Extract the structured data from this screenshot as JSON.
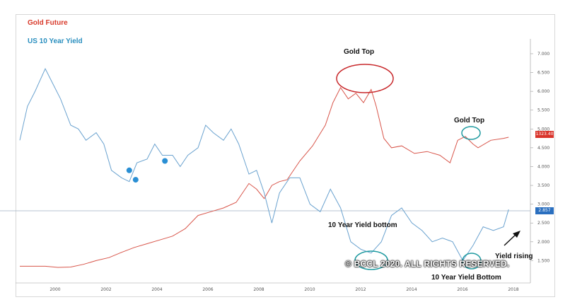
{
  "chart_data": {
    "type": "line",
    "legend": [
      "Gold Future",
      "US 10 Year Yield"
    ],
    "y_ticks": [
      "7.000",
      "6.500",
      "6.000",
      "5.500",
      "5.000",
      "4.500",
      "4.000",
      "3.500",
      "3.000",
      "2.500",
      "2.000",
      "1.500"
    ],
    "y_tick_values": [
      7.0,
      6.5,
      6.0,
      5.5,
      5.0,
      4.5,
      4.0,
      3.5,
      3.0,
      2.5,
      2.0,
      1.5
    ],
    "x_ticks": [
      "2000",
      "2002",
      "2004",
      "2006",
      "2008",
      "2010",
      "2012",
      "2014",
      "2016",
      "2018"
    ],
    "x_tick_values": [
      2000,
      2002,
      2004,
      2006,
      2008,
      2010,
      2012,
      2014,
      2016,
      2018
    ],
    "xlim": [
      1999.0,
      2019.0
    ],
    "ylim": [
      1.0,
      7.3
    ],
    "colors": {
      "gold": "#d8554a",
      "yield": "#6aa2cf",
      "gold_tag": "#d9342b",
      "yield_tag": "#2a6fbf",
      "ellipse_red": "#c8282b",
      "ellipse_teal": "#1f9aa0"
    },
    "series": [
      {
        "name": "Gold Future",
        "x": [
          1999.0,
          1999.5,
          2000.0,
          2000.5,
          2001.0,
          2001.5,
          2002.0,
          2002.5,
          2003.0,
          2003.5,
          2004.0,
          2004.5,
          2005.0,
          2005.5,
          2006.0,
          2006.5,
          2007.0,
          2007.5,
          2008.0,
          2008.3,
          2008.6,
          2008.9,
          2009.2,
          2009.5,
          2010.0,
          2010.5,
          2011.0,
          2011.3,
          2011.6,
          2011.9,
          2012.2,
          2012.5,
          2012.8,
          2013.0,
          2013.3,
          2013.6,
          2014.0,
          2014.5,
          2015.0,
          2015.5,
          2015.9,
          2016.2,
          2016.5,
          2016.8,
          2017.0,
          2017.5,
          2018.0,
          2018.2
        ],
        "values": [
          1.35,
          1.35,
          1.35,
          1.32,
          1.33,
          1.4,
          1.5,
          1.58,
          1.72,
          1.85,
          1.95,
          2.05,
          2.15,
          2.35,
          2.7,
          2.8,
          2.9,
          3.05,
          3.55,
          3.4,
          3.15,
          3.5,
          3.6,
          3.65,
          4.15,
          4.55,
          5.1,
          5.7,
          6.1,
          5.8,
          5.95,
          5.7,
          6.05,
          5.6,
          4.75,
          4.5,
          4.55,
          4.35,
          4.4,
          4.3,
          4.1,
          4.7,
          4.8,
          4.6,
          4.5,
          4.7,
          4.75,
          4.78
        ]
      },
      {
        "name": "US 10 Year Yield",
        "x": [
          1999.0,
          1999.3,
          1999.6,
          2000.0,
          2000.3,
          2000.6,
          2001.0,
          2001.3,
          2001.6,
          2002.0,
          2002.3,
          2002.6,
          2003.0,
          2003.3,
          2003.6,
          2004.0,
          2004.3,
          2004.6,
          2005.0,
          2005.3,
          2005.6,
          2006.0,
          2006.3,
          2006.6,
          2007.0,
          2007.3,
          2007.6,
          2008.0,
          2008.3,
          2008.6,
          2008.9,
          2009.2,
          2009.6,
          2010.0,
          2010.4,
          2010.8,
          2011.2,
          2011.6,
          2012.0,
          2012.4,
          2012.8,
          2013.2,
          2013.6,
          2014.0,
          2014.4,
          2014.8,
          2015.2,
          2015.6,
          2016.0,
          2016.4,
          2016.8,
          2017.2,
          2017.6,
          2018.0,
          2018.2
        ],
        "values": [
          4.7,
          5.6,
          6.0,
          6.6,
          6.2,
          5.8,
          5.1,
          5.0,
          4.7,
          4.9,
          4.6,
          3.9,
          3.7,
          3.6,
          4.1,
          4.2,
          4.6,
          4.3,
          4.3,
          4.0,
          4.3,
          4.5,
          5.1,
          4.9,
          4.7,
          5.0,
          4.6,
          3.8,
          3.9,
          3.3,
          2.5,
          3.3,
          3.7,
          3.7,
          3.0,
          2.8,
          3.4,
          2.9,
          2.0,
          1.8,
          1.7,
          2.0,
          2.7,
          2.9,
          2.5,
          2.3,
          2.0,
          2.1,
          2.0,
          1.5,
          1.9,
          2.4,
          2.3,
          2.4,
          2.86
        ]
      }
    ],
    "tags": {
      "gold_last": "1323.40",
      "yield_last": "2.857"
    },
    "annotations": {
      "gold_top_1": "Gold Top",
      "gold_top_2": "Gold Top",
      "yield_bottom_1": "10 Year Yield bottom",
      "yield_bottom_2": "10 Year Yield Bottom",
      "yield_rising": "Yield rising"
    },
    "watermark": "© BCCL 2020. ALL RIGHTS RESERVED."
  }
}
